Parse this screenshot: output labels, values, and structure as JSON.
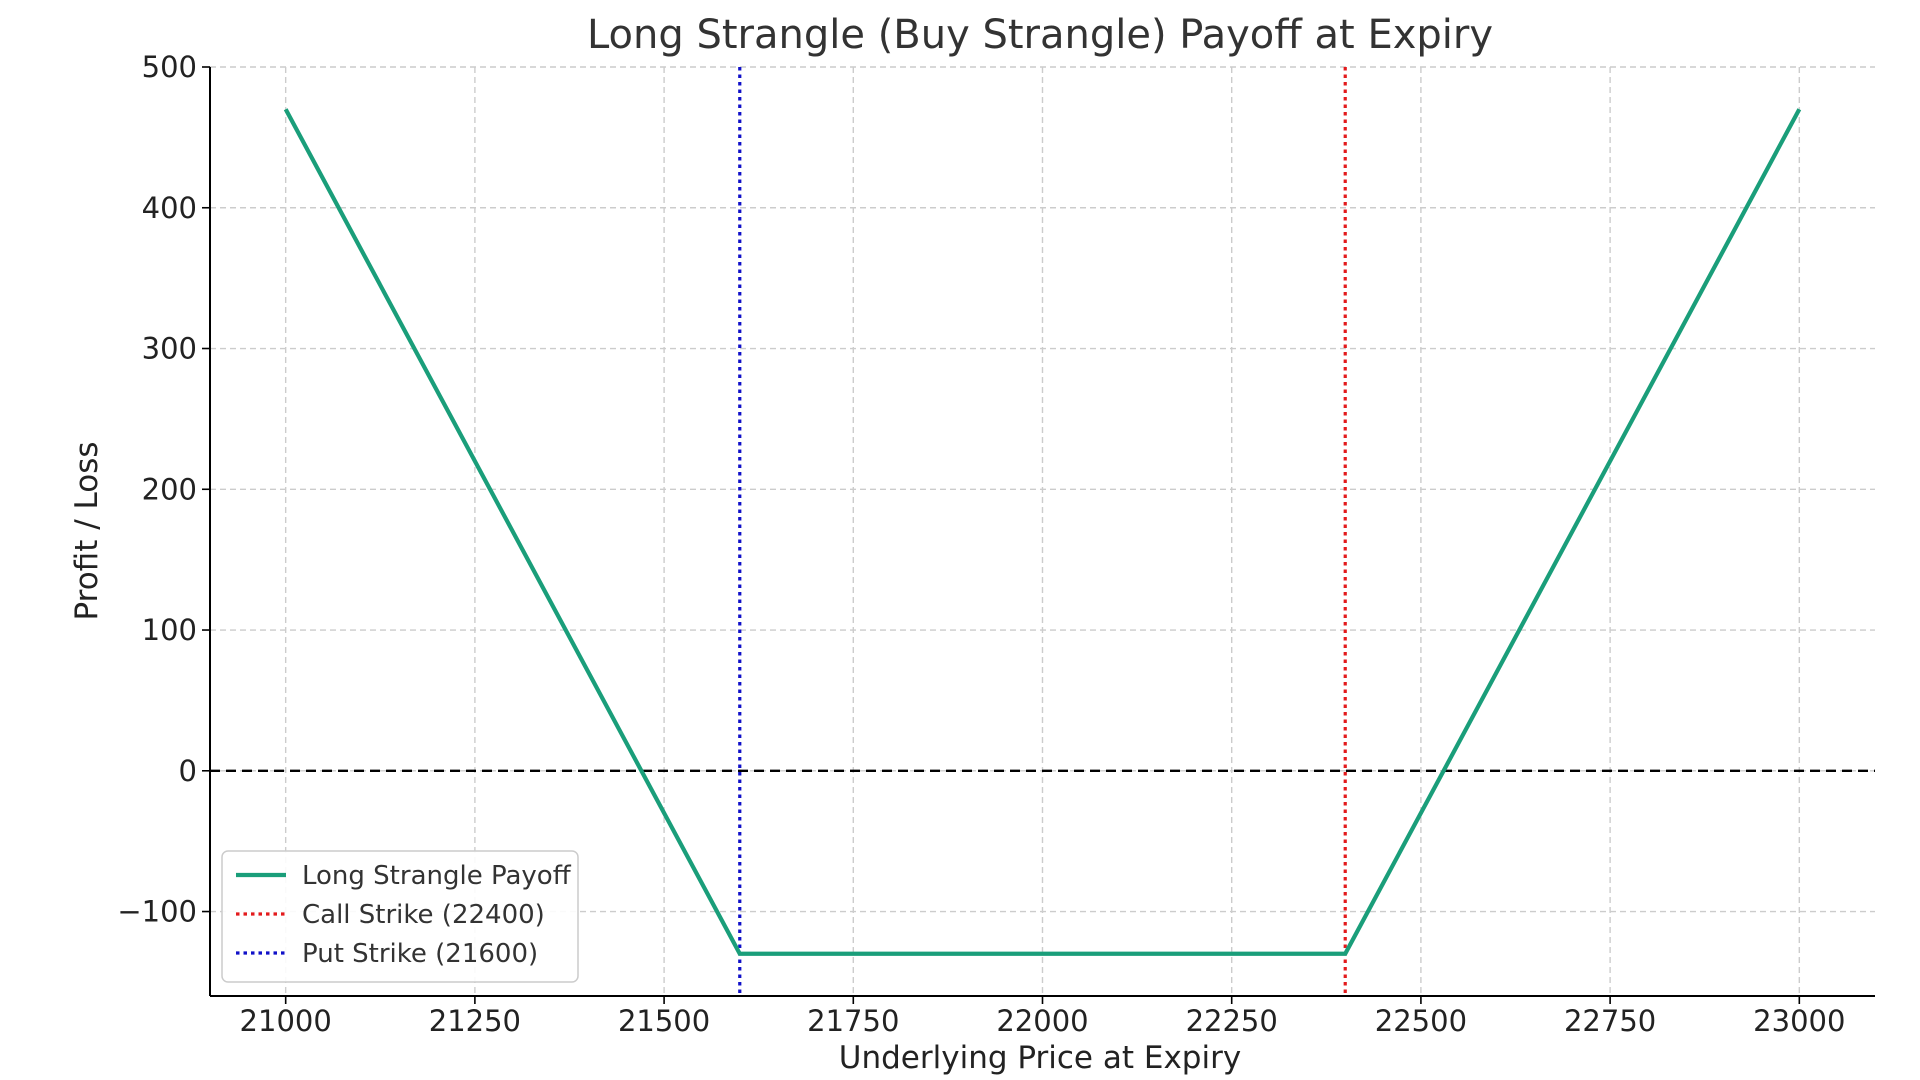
{
  "chart_data": {
    "type": "line",
    "title": "Long Strangle (Buy Strangle) Payoff at Expiry",
    "xlabel": "Underlying Price at Expiry",
    "ylabel": "Profit / Loss",
    "xlim": [
      20900,
      23100
    ],
    "ylim": [
      -160,
      500
    ],
    "xticks": [
      21000,
      21250,
      21500,
      21750,
      22000,
      22250,
      22500,
      22750,
      23000
    ],
    "yticks": [
      -100,
      0,
      100,
      200,
      300,
      400,
      500
    ],
    "ytick_labels": [
      "−100",
      "0",
      "100",
      "200",
      "300",
      "400",
      "500"
    ],
    "grid": true,
    "legend_position": "lower-left",
    "series": [
      {
        "name": "Long Strangle Payoff",
        "color": "#1a9e7a",
        "style": "solid",
        "x": [
          21000,
          21600,
          22400,
          23000
        ],
        "y": [
          470,
          -130,
          -130,
          470
        ]
      }
    ],
    "reference_lines": [
      {
        "name": "Call Strike (22400)",
        "orientation": "vertical",
        "value": 22400,
        "color": "#e31a1c",
        "style": "dotted"
      },
      {
        "name": "Put Strike (21600)",
        "orientation": "vertical",
        "value": 21600,
        "color": "#1010c8",
        "style": "dotted"
      },
      {
        "orientation": "horizontal",
        "value": 0,
        "color": "#000000",
        "style": "dashed"
      }
    ]
  }
}
